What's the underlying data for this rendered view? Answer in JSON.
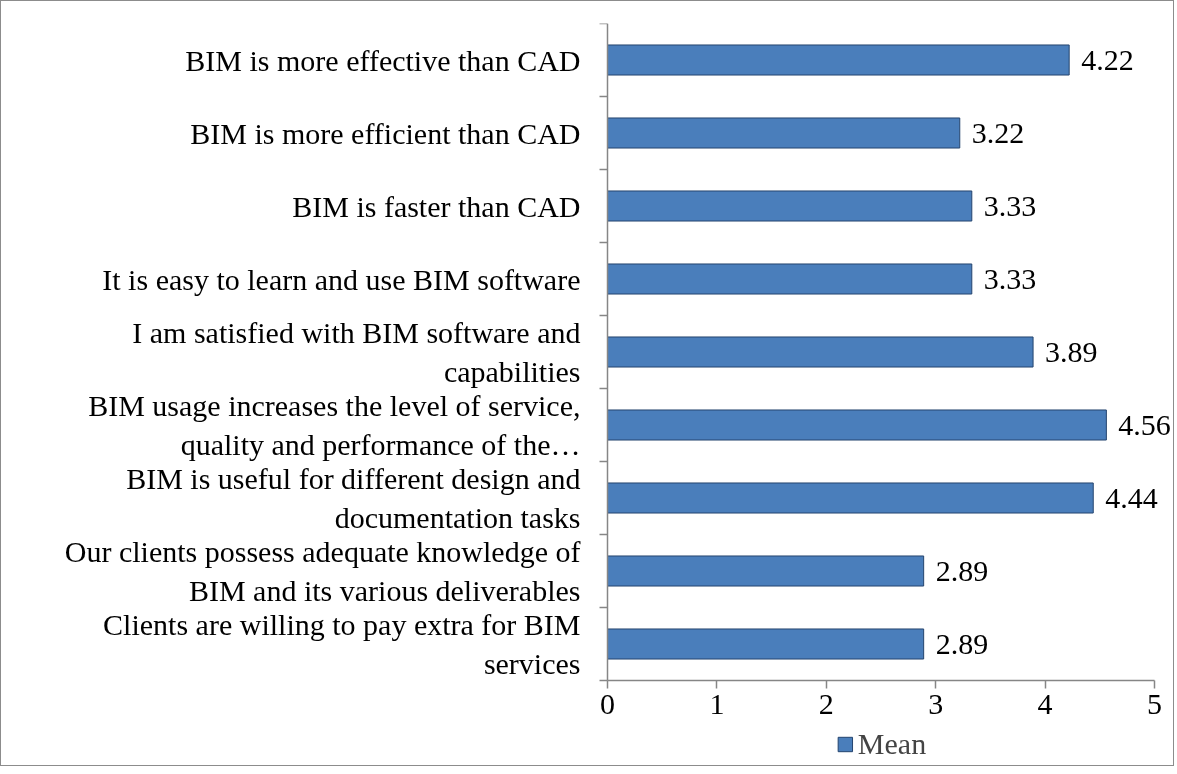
{
  "chart_data": {
    "type": "bar",
    "orientation": "horizontal",
    "categories": [
      "BIM is more effective than CAD",
      "BIM is more efficient than CAD",
      "BIM is faster than CAD",
      "It is easy to learn and use BIM software",
      "I am satisfied with BIM software and capabilities",
      "BIM usage increases the level of service, quality and performance of the…",
      "BIM is useful for different design and documentation tasks",
      "Our clients possess adequate knowledge of BIM and its various deliverables",
      "Clients are willing to pay extra for BIM services"
    ],
    "series": [
      {
        "name": "Mean",
        "color": "#4a7ebb",
        "values": [
          4.22,
          3.22,
          3.33,
          3.33,
          3.89,
          4.56,
          4.44,
          2.89,
          2.89
        ]
      }
    ],
    "xlim": [
      0,
      5
    ],
    "xticks": [
      0,
      1,
      2,
      3,
      4,
      5
    ],
    "data_labels": true,
    "legend": "bottom",
    "grid": false
  }
}
